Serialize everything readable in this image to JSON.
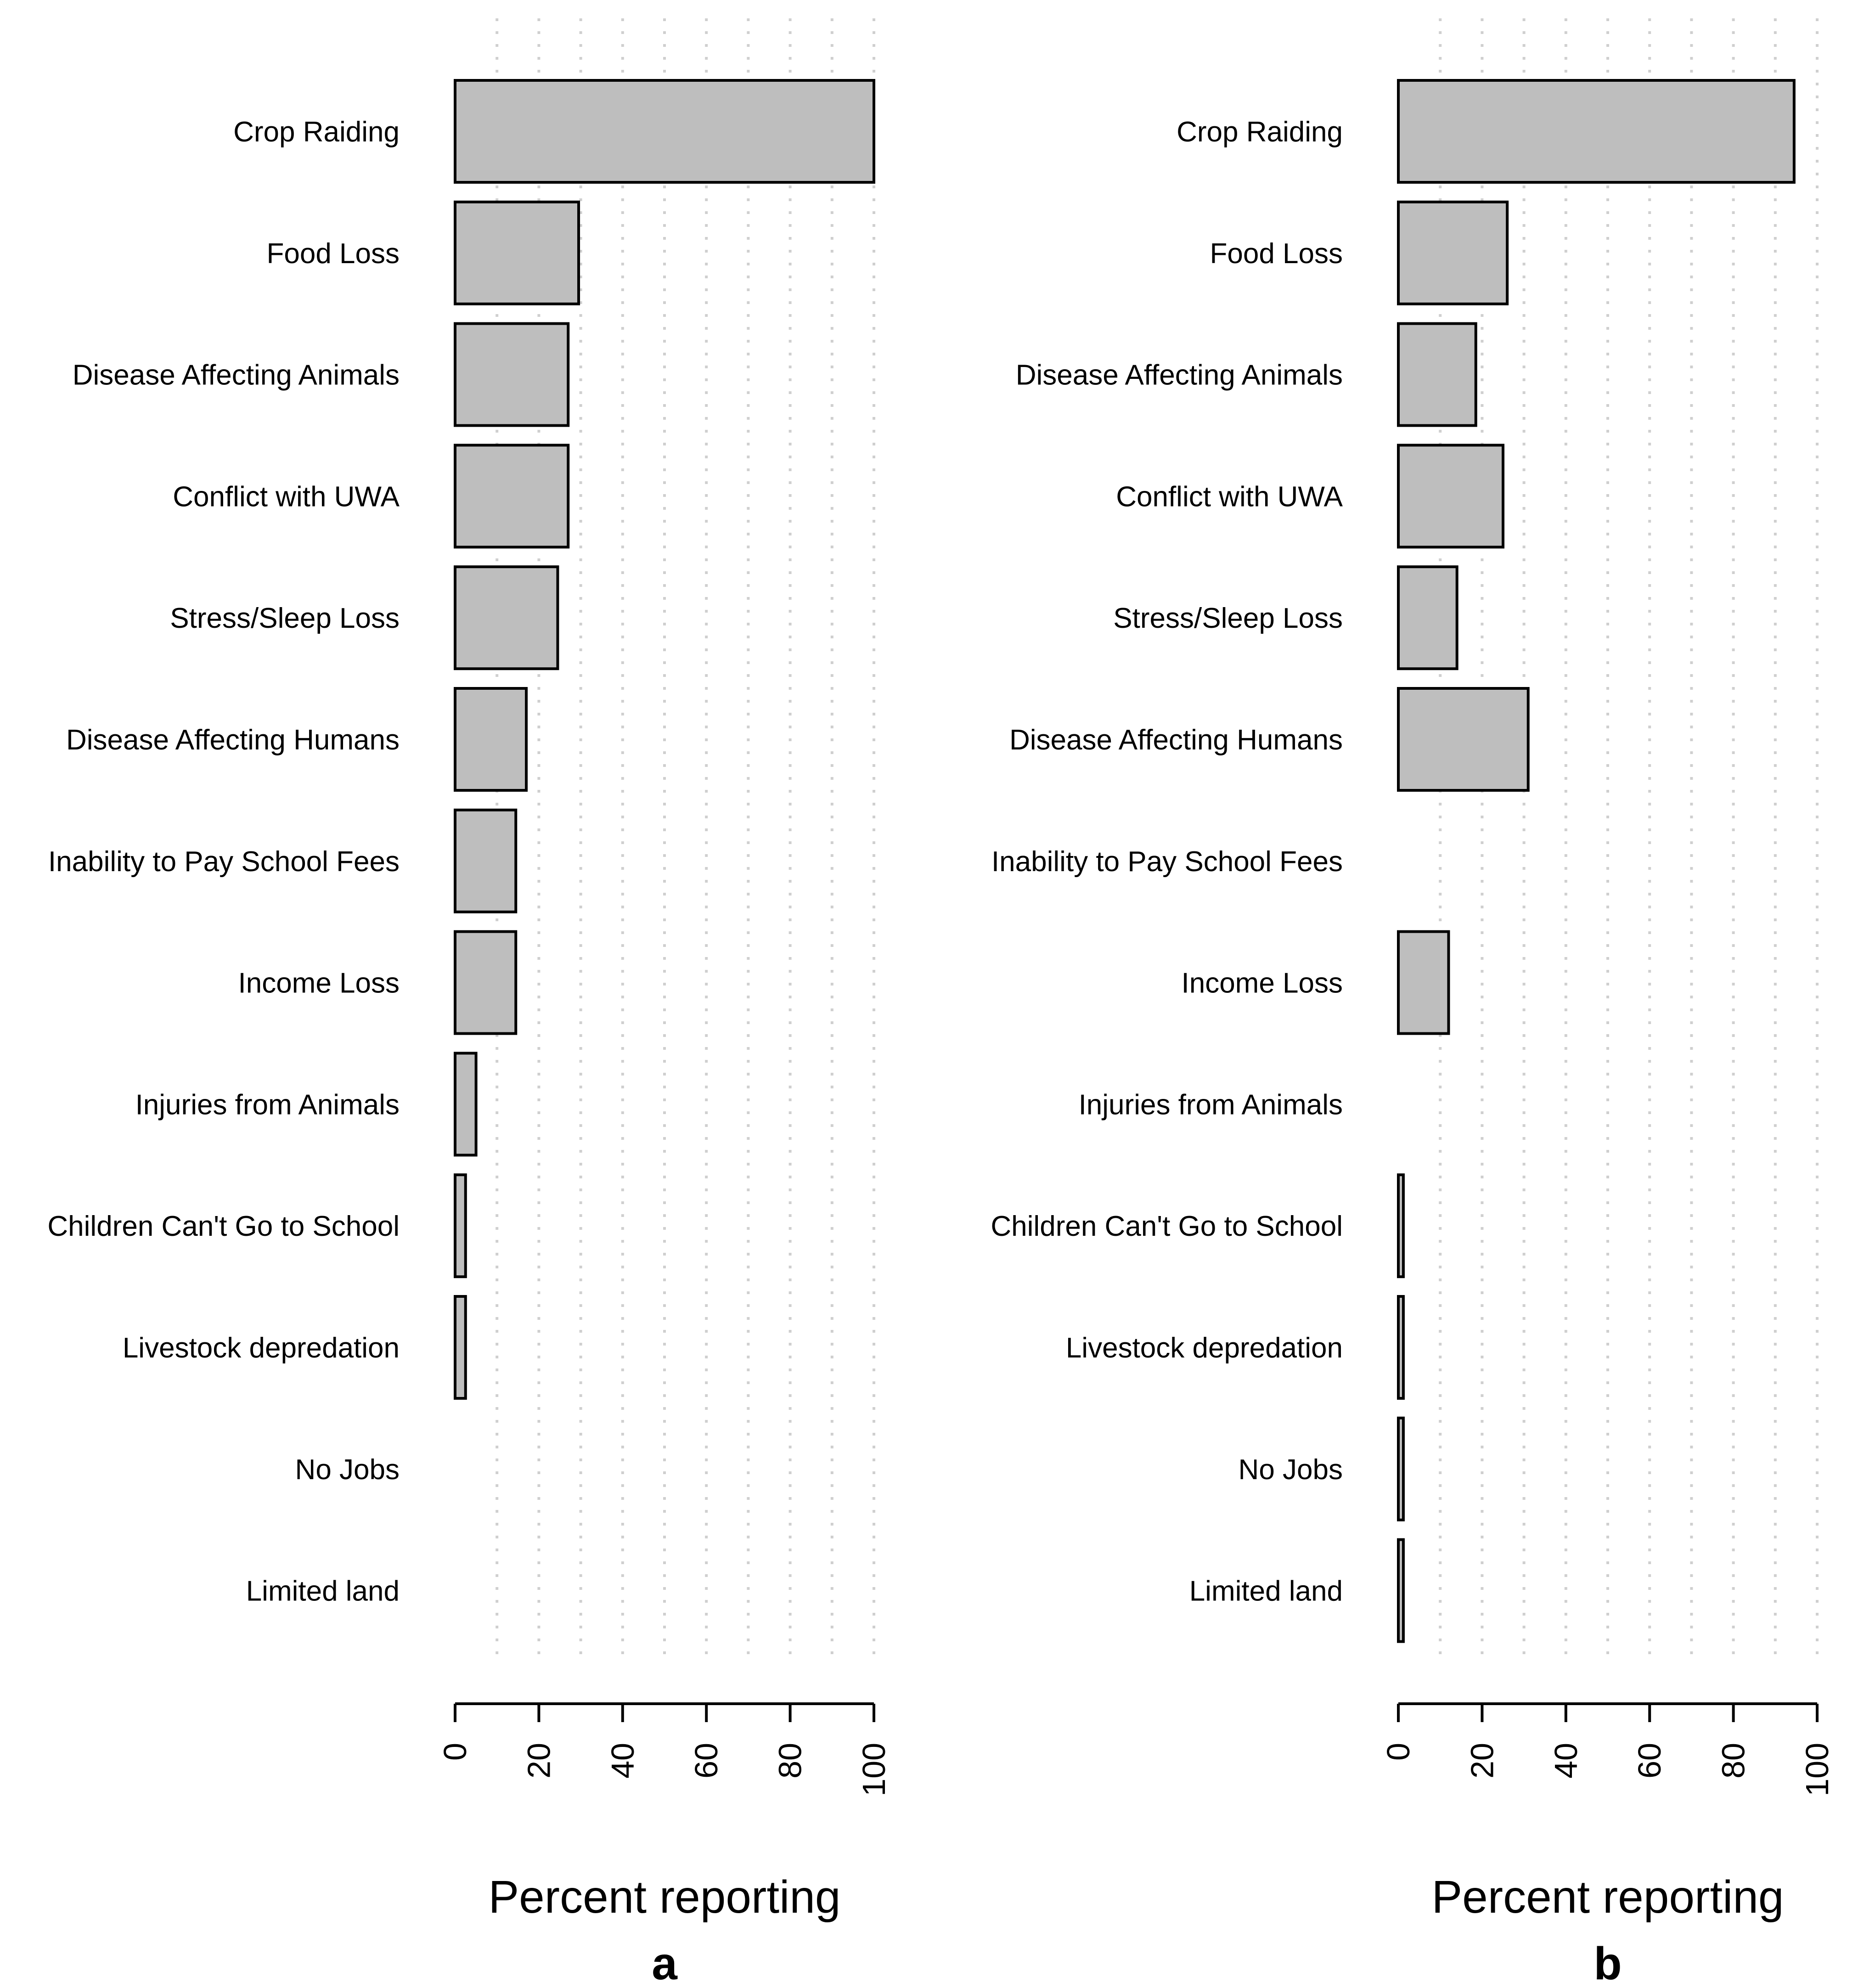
{
  "chart_data": [
    {
      "type": "bar",
      "orientation": "horizontal",
      "panel": "a",
      "categories": [
        "Crop Raiding",
        "Food Loss",
        "Disease Affecting Animals",
        "Conflict with UWA",
        "Stress/Sleep Loss",
        "Disease Affecting Humans",
        "Inability to Pay School Fees",
        "Income Loss",
        "Injuries from Animals",
        "Children Can't Go to School",
        "Livestock depredation",
        "No Jobs",
        "Limited land"
      ],
      "values": [
        100,
        29.5,
        27,
        27,
        24.5,
        17,
        14.5,
        14.5,
        5,
        2.5,
        2.5,
        0,
        0
      ],
      "xlabel": "Percent reporting",
      "xlim": [
        0,
        100
      ],
      "xticks": [
        0,
        20,
        40,
        60,
        80,
        100
      ],
      "grid": "vertical dotted every 10",
      "bar_color": "#bebebe"
    },
    {
      "type": "bar",
      "orientation": "horizontal",
      "panel": "b",
      "categories": [
        "Crop Raiding",
        "Food Loss",
        "Disease Affecting Animals",
        "Conflict with UWA",
        "Stress/Sleep Loss",
        "Disease Affecting Humans",
        "Inability to Pay School Fees",
        "Income Loss",
        "Injuries from Animals",
        "Children Can't Go to School",
        "Livestock depredation",
        "No Jobs",
        "Limited land"
      ],
      "values": [
        94.5,
        26,
        18.5,
        25,
        14,
        31,
        0,
        12,
        0,
        1.2,
        1.2,
        1.2,
        1.2
      ],
      "xlabel": "Percent reporting",
      "xlim": [
        0,
        100
      ],
      "xticks": [
        0,
        20,
        40,
        60,
        80,
        100
      ],
      "grid": "vertical dotted every 10",
      "bar_color": "#bebebe"
    }
  ]
}
